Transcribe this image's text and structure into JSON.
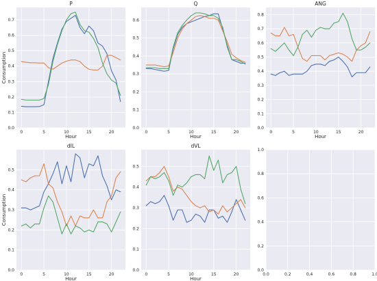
{
  "chart_data": [
    {
      "type": "line",
      "title": "P",
      "xlabel": "Hour",
      "ylabel": "Consumption",
      "xlim": [
        -1.1,
        23.1
      ],
      "ylim": [
        0.0,
        0.78
      ],
      "xticks": [
        0,
        5,
        10,
        15,
        20
      ],
      "yticks": [
        0.0,
        0.1,
        0.2,
        0.3,
        0.4,
        0.5,
        0.6,
        0.7
      ],
      "grid": true,
      "colors": [
        "#4c72b0",
        "#dd8452",
        "#55a868"
      ],
      "x": [
        0,
        1,
        2,
        3,
        4,
        5,
        6,
        7,
        8,
        9,
        10,
        11,
        12,
        13,
        14,
        15,
        16,
        17,
        18,
        19,
        20,
        21,
        22
      ],
      "series": [
        {
          "values": [
            0.14,
            0.137,
            0.137,
            0.137,
            0.138,
            0.15,
            0.3,
            0.45,
            0.55,
            0.64,
            0.69,
            0.71,
            0.73,
            0.65,
            0.61,
            0.66,
            0.63,
            0.55,
            0.53,
            0.48,
            0.37,
            0.31,
            0.17
          ]
        },
        {
          "values": [
            0.43,
            0.425,
            0.422,
            0.422,
            0.42,
            0.42,
            0.39,
            0.38,
            0.4,
            0.42,
            0.432,
            0.44,
            0.44,
            0.43,
            0.4,
            0.38,
            0.375,
            0.375,
            0.4,
            0.47,
            0.47,
            0.455,
            0.44
          ]
        },
        {
          "values": [
            0.185,
            0.18,
            0.18,
            0.18,
            0.18,
            0.19,
            0.28,
            0.43,
            0.54,
            0.63,
            0.7,
            0.74,
            0.75,
            0.67,
            0.63,
            0.62,
            0.58,
            0.52,
            0.42,
            0.35,
            0.31,
            0.29,
            0.21
          ]
        }
      ]
    },
    {
      "type": "line",
      "title": "Q",
      "xlabel": "Hour",
      "ylabel": "",
      "xlim": [
        -1.1,
        23.1
      ],
      "ylim": [
        0.0,
        0.67
      ],
      "xticks": [
        0,
        5,
        10,
        15,
        20
      ],
      "yticks": [
        0.0,
        0.1,
        0.2,
        0.3,
        0.4,
        0.5,
        0.6
      ],
      "grid": true,
      "colors": [
        "#4c72b0",
        "#dd8452",
        "#55a868"
      ],
      "x": [
        0,
        1,
        2,
        3,
        4,
        5,
        6,
        7,
        8,
        9,
        10,
        11,
        12,
        13,
        14,
        15,
        16,
        17,
        18,
        19,
        20,
        21,
        22
      ],
      "series": [
        {
          "values": [
            0.33,
            0.33,
            0.325,
            0.32,
            0.315,
            0.32,
            0.44,
            0.52,
            0.56,
            0.58,
            0.59,
            0.6,
            0.61,
            0.62,
            0.625,
            0.635,
            0.635,
            0.55,
            0.46,
            0.38,
            0.37,
            0.36,
            0.36
          ]
        },
        {
          "values": [
            0.35,
            0.35,
            0.35,
            0.345,
            0.34,
            0.345,
            0.42,
            0.5,
            0.55,
            0.58,
            0.6,
            0.62,
            0.625,
            0.62,
            0.61,
            0.61,
            0.6,
            0.54,
            0.48,
            0.41,
            0.39,
            0.375,
            0.365
          ]
        },
        {
          "values": [
            0.335,
            0.335,
            0.335,
            0.33,
            0.33,
            0.33,
            0.45,
            0.53,
            0.57,
            0.6,
            0.625,
            0.64,
            0.64,
            0.635,
            0.625,
            0.625,
            0.61,
            0.56,
            0.45,
            0.38,
            0.38,
            0.37,
            0.355
          ]
        }
      ]
    },
    {
      "type": "line",
      "title": "ANG",
      "xlabel": "Hour",
      "ylabel": "",
      "xlim": [
        -1.1,
        23.1
      ],
      "ylim": [
        0.0,
        0.85
      ],
      "xticks": [
        0,
        5,
        10,
        15,
        20
      ],
      "yticks": [
        0.0,
        0.1,
        0.2,
        0.3,
        0.4,
        0.5,
        0.6,
        0.7,
        0.8
      ],
      "grid": true,
      "colors": [
        "#4c72b0",
        "#dd8452",
        "#55a868"
      ],
      "x": [
        0,
        1,
        2,
        3,
        4,
        5,
        6,
        7,
        8,
        9,
        10,
        11,
        12,
        13,
        14,
        15,
        16,
        17,
        18,
        19,
        20,
        21,
        22
      ],
      "series": [
        {
          "values": [
            0.38,
            0.37,
            0.39,
            0.4,
            0.37,
            0.38,
            0.38,
            0.38,
            0.4,
            0.44,
            0.45,
            0.45,
            0.44,
            0.47,
            0.48,
            0.5,
            0.47,
            0.43,
            0.36,
            0.39,
            0.39,
            0.39,
            0.43
          ]
        },
        {
          "values": [
            0.67,
            0.65,
            0.65,
            0.71,
            0.65,
            0.66,
            0.57,
            0.49,
            0.47,
            0.51,
            0.51,
            0.51,
            0.48,
            0.51,
            0.52,
            0.53,
            0.52,
            0.5,
            0.47,
            0.55,
            0.58,
            0.6,
            0.68
          ]
        },
        {
          "values": [
            0.56,
            0.54,
            0.57,
            0.6,
            0.55,
            0.51,
            0.57,
            0.66,
            0.69,
            0.64,
            0.69,
            0.71,
            0.7,
            0.7,
            0.74,
            0.75,
            0.81,
            0.75,
            0.63,
            0.55,
            0.55,
            0.57,
            0.6
          ]
        }
      ]
    },
    {
      "type": "line",
      "title": "dIL",
      "xlabel": "Hour",
      "ylabel": "Consumption",
      "xlim": [
        -1.1,
        23.1
      ],
      "ylim": [
        0.0,
        0.6
      ],
      "xticks": [
        0,
        5,
        10,
        15,
        20
      ],
      "yticks": [
        0.0,
        0.1,
        0.2,
        0.3,
        0.4,
        0.5
      ],
      "grid": true,
      "colors": [
        "#4c72b0",
        "#dd8452",
        "#55a868"
      ],
      "x": [
        0,
        1,
        2,
        3,
        4,
        5,
        6,
        7,
        8,
        9,
        10,
        11,
        12,
        13,
        14,
        15,
        16,
        17,
        18,
        19,
        20,
        21,
        22
      ],
      "series": [
        {
          "values": [
            0.31,
            0.31,
            0.3,
            0.31,
            0.32,
            0.39,
            0.43,
            0.48,
            0.54,
            0.43,
            0.52,
            0.44,
            0.58,
            0.56,
            0.46,
            0.53,
            0.52,
            0.57,
            0.47,
            0.42,
            0.35,
            0.4,
            0.39
          ]
        },
        {
          "values": [
            0.45,
            0.44,
            0.46,
            0.47,
            0.47,
            0.53,
            0.43,
            0.41,
            0.34,
            0.29,
            0.22,
            0.27,
            0.22,
            0.27,
            0.26,
            0.26,
            0.3,
            0.26,
            0.26,
            0.34,
            0.37,
            0.46,
            0.49
          ]
        },
        {
          "values": [
            0.22,
            0.23,
            0.21,
            0.23,
            0.23,
            0.31,
            0.37,
            0.34,
            0.26,
            0.18,
            0.23,
            0.18,
            0.22,
            0.21,
            0.19,
            0.2,
            0.19,
            0.24,
            0.24,
            0.23,
            0.19,
            0.24,
            0.29
          ]
        }
      ]
    },
    {
      "type": "line",
      "title": "dVL",
      "xlabel": "Hour",
      "ylabel": "",
      "xlim": [
        -1.1,
        23.1
      ],
      "ylim": [
        0.0,
        0.58
      ],
      "xticks": [
        0,
        5,
        10,
        15,
        20
      ],
      "yticks": [
        0.0,
        0.1,
        0.2,
        0.3,
        0.4,
        0.5
      ],
      "grid": true,
      "colors": [
        "#4c72b0",
        "#dd8452",
        "#55a868"
      ],
      "x": [
        0,
        1,
        2,
        3,
        4,
        5,
        6,
        7,
        8,
        9,
        10,
        11,
        12,
        13,
        14,
        15,
        16,
        17,
        18,
        19,
        20,
        21,
        22
      ],
      "series": [
        {
          "values": [
            0.31,
            0.33,
            0.32,
            0.33,
            0.36,
            0.31,
            0.24,
            0.29,
            0.29,
            0.23,
            0.24,
            0.27,
            0.26,
            0.23,
            0.29,
            0.29,
            0.25,
            0.26,
            0.23,
            0.28,
            0.34,
            0.29,
            0.24
          ]
        },
        {
          "values": [
            0.43,
            0.45,
            0.45,
            0.47,
            0.5,
            0.45,
            0.38,
            0.4,
            0.39,
            0.36,
            0.33,
            0.31,
            0.3,
            0.31,
            0.28,
            0.29,
            0.27,
            0.31,
            0.28,
            0.3,
            0.32,
            0.34,
            0.3
          ]
        },
        {
          "values": [
            0.41,
            0.45,
            0.44,
            0.45,
            0.47,
            0.43,
            0.36,
            0.41,
            0.4,
            0.42,
            0.45,
            0.46,
            0.46,
            0.44,
            0.55,
            0.48,
            0.53,
            0.42,
            0.46,
            0.47,
            0.5,
            0.39,
            0.32
          ]
        }
      ]
    },
    {
      "type": "line",
      "title": "",
      "xlabel": "",
      "ylabel": "",
      "xlim": [
        0.0,
        1.0
      ],
      "ylim": [
        0.0,
        1.0
      ],
      "xticks": [
        0.0,
        0.2,
        0.4,
        0.6,
        0.8,
        1.0
      ],
      "yticks": [
        0.0,
        0.2,
        0.4,
        0.6,
        0.8,
        1.0
      ],
      "grid": true,
      "colors": [],
      "series": []
    }
  ]
}
